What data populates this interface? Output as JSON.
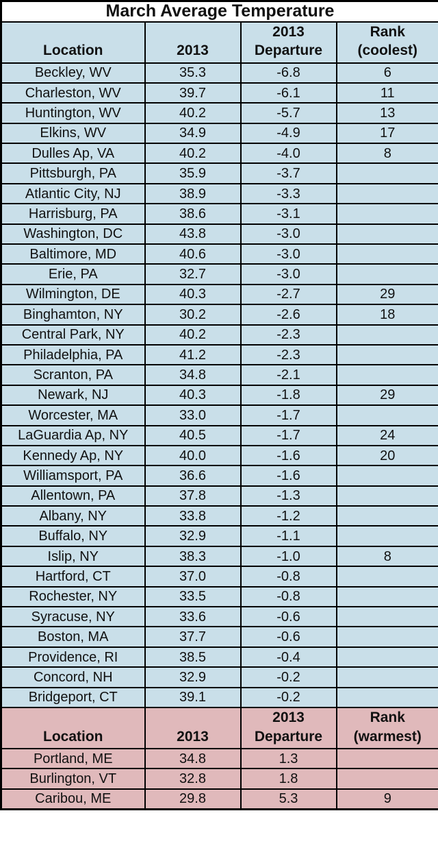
{
  "title": "March Average Temperature",
  "colors": {
    "cool_bg": "#C9DFE9",
    "warm_bg": "#E0B9BB",
    "border": "#000000",
    "title_bg": "#FFFFFF",
    "text": "#111111"
  },
  "chart_data": {
    "type": "table",
    "title": "March Average Temperature",
    "sections": [
      {
        "name": "coolest",
        "headers": [
          "Location",
          "2013",
          "2013\nDeparture",
          "Rank\n(coolest)"
        ],
        "rows": [
          [
            "Beckley, WV",
            "35.3",
            "-6.8",
            "6"
          ],
          [
            "Charleston, WV",
            "39.7",
            "-6.1",
            "11"
          ],
          [
            "Huntington, WV",
            "40.2",
            "-5.7",
            "13"
          ],
          [
            "Elkins, WV",
            "34.9",
            "-4.9",
            "17"
          ],
          [
            "Dulles Ap, VA",
            "40.2",
            "-4.0",
            "8"
          ],
          [
            "Pittsburgh, PA",
            "35.9",
            "-3.7",
            ""
          ],
          [
            "Atlantic City, NJ",
            "38.9",
            "-3.3",
            ""
          ],
          [
            "Harrisburg, PA",
            "38.6",
            "-3.1",
            ""
          ],
          [
            "Washington, DC",
            "43.8",
            "-3.0",
            ""
          ],
          [
            "Baltimore, MD",
            "40.6",
            "-3.0",
            ""
          ],
          [
            "Erie, PA",
            "32.7",
            "-3.0",
            ""
          ],
          [
            "Wilmington, DE",
            "40.3",
            "-2.7",
            "29"
          ],
          [
            "Binghamton, NY",
            "30.2",
            "-2.6",
            "18"
          ],
          [
            "Central Park, NY",
            "40.2",
            "-2.3",
            ""
          ],
          [
            "Philadelphia, PA",
            "41.2",
            "-2.3",
            ""
          ],
          [
            "Scranton, PA",
            "34.8",
            "-2.1",
            ""
          ],
          [
            "Newark, NJ",
            "40.3",
            "-1.8",
            "29"
          ],
          [
            "Worcester, MA",
            "33.0",
            "-1.7",
            ""
          ],
          [
            "LaGuardia Ap, NY",
            "40.5",
            "-1.7",
            "24"
          ],
          [
            "Kennedy Ap, NY",
            "40.0",
            "-1.6",
            "20"
          ],
          [
            "Williamsport, PA",
            "36.6",
            "-1.6",
            ""
          ],
          [
            "Allentown, PA",
            "37.8",
            "-1.3",
            ""
          ],
          [
            "Albany, NY",
            "33.8",
            "-1.2",
            ""
          ],
          [
            "Buffalo, NY",
            "32.9",
            "-1.1",
            ""
          ],
          [
            "Islip, NY",
            "38.3",
            "-1.0",
            "8"
          ],
          [
            "Hartford, CT",
            "37.0",
            "-0.8",
            ""
          ],
          [
            "Rochester, NY",
            "33.5",
            "-0.8",
            ""
          ],
          [
            "Syracuse, NY",
            "33.6",
            "-0.6",
            ""
          ],
          [
            "Boston, MA",
            "37.7",
            "-0.6",
            ""
          ],
          [
            "Providence, RI",
            "38.5",
            "-0.4",
            ""
          ],
          [
            "Concord, NH",
            "32.9",
            "-0.2",
            ""
          ],
          [
            "Bridgeport, CT",
            "39.1",
            "-0.2",
            ""
          ]
        ]
      },
      {
        "name": "warmest",
        "headers": [
          "Location",
          "2013",
          "2013\nDeparture",
          "Rank\n(warmest)"
        ],
        "rows": [
          [
            "Portland, ME",
            "34.8",
            "1.3",
            ""
          ],
          [
            "Burlington, VT",
            "32.8",
            "1.8",
            ""
          ],
          [
            "Caribou, ME",
            "29.8",
            "5.3",
            "9"
          ]
        ]
      }
    ]
  }
}
